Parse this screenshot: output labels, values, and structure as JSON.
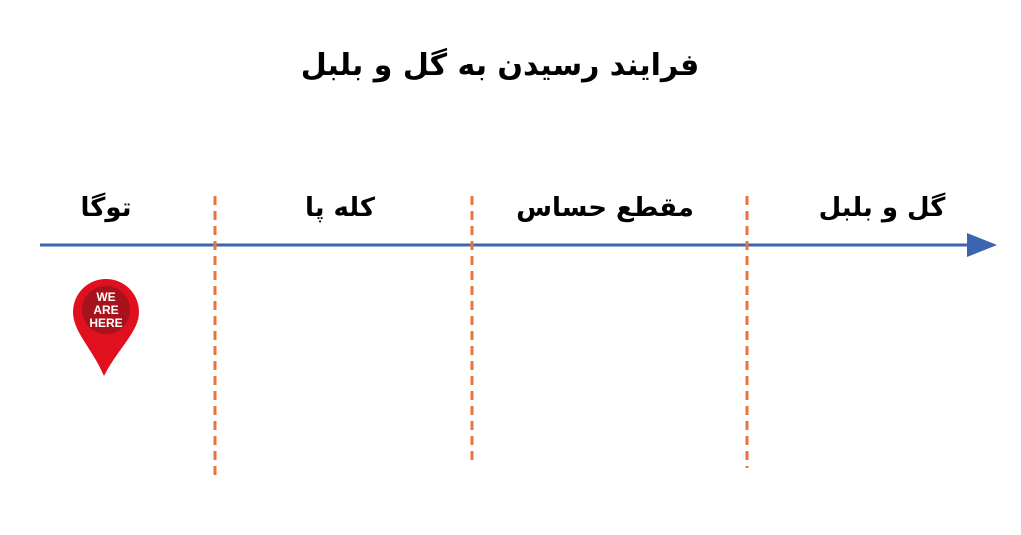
{
  "title": "فرایند رسیدن به گل و بلبل",
  "stages": [
    {
      "label": "توگا"
    },
    {
      "label": "کله پا"
    },
    {
      "label": "مقطع حساس"
    },
    {
      "label": "گل و بلبل"
    }
  ],
  "marker": {
    "text_lines": [
      "WE",
      "ARE",
      "HERE"
    ],
    "stage": "توگا"
  },
  "colors": {
    "axis": "#3B65AE",
    "divider": "#E8763A",
    "pin": "#E0101E",
    "pin_inner": "#A8121C"
  }
}
